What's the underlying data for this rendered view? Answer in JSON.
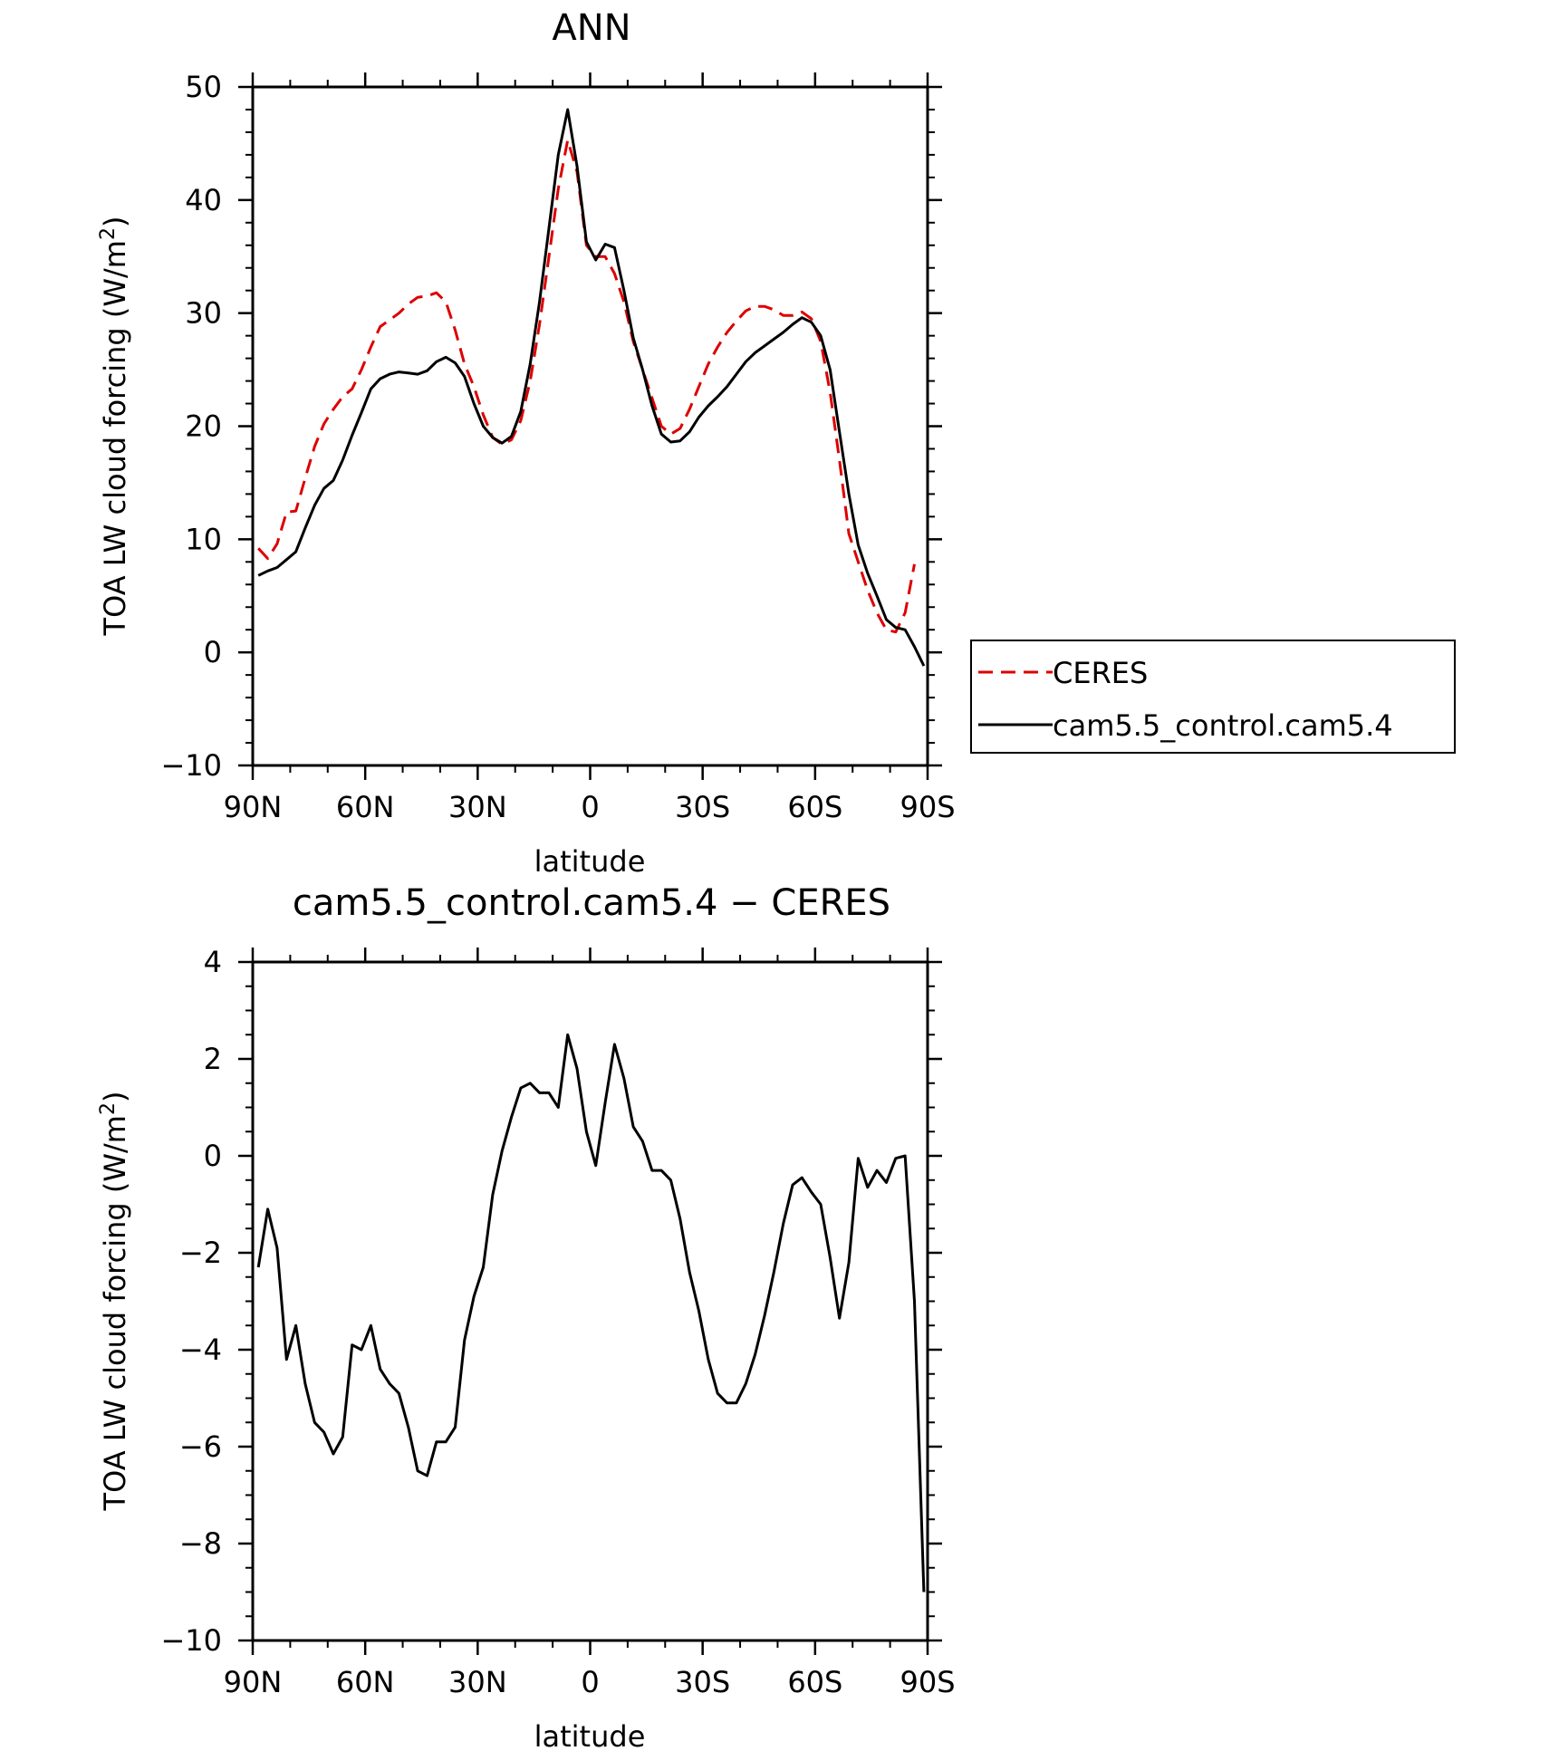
{
  "chart_data": [
    {
      "type": "line",
      "title": "ANN",
      "xlabel": "latitude",
      "ylabel_main": "TOA LW cloud forcing (W/m",
      "ylabel_sup": "2",
      "ylabel_close": ")",
      "xlim": [
        90,
        -90
      ],
      "ylim": [
        -10,
        50
      ],
      "x_ticks": [
        90,
        60,
        30,
        0,
        -30,
        -60,
        -90
      ],
      "x_tick_labels": [
        "90N",
        "60N",
        "30N",
        "0",
        "30S",
        "60S",
        "90S"
      ],
      "y_ticks": [
        -10,
        0,
        10,
        20,
        30,
        40,
        50
      ],
      "y_tick_labels": [
        "−10",
        "0",
        "10",
        "20",
        "30",
        "40",
        "50"
      ],
      "legend_position": "right",
      "series": [
        {
          "name": "CERES",
          "color": "#dd0000",
          "dash": "dashed",
          "points": [
            [
              88.5,
              9.2
            ],
            [
              86,
              8.3
            ],
            [
              83.5,
              9.6
            ],
            [
              81,
              12.4
            ],
            [
              78.5,
              12.5
            ],
            [
              76,
              15.4
            ],
            [
              73.5,
              18.2
            ],
            [
              71,
              20.2
            ],
            [
              68.5,
              21.5
            ],
            [
              66,
              22.6
            ],
            [
              63.5,
              23.3
            ],
            [
              61,
              25.0
            ],
            [
              58.5,
              27.0
            ],
            [
              56,
              28.8
            ],
            [
              53.5,
              29.4
            ],
            [
              51,
              30.0
            ],
            [
              48.5,
              30.8
            ],
            [
              46,
              31.4
            ],
            [
              43.5,
              31.5
            ],
            [
              41,
              31.8
            ],
            [
              38.5,
              31.0
            ],
            [
              36,
              28.5
            ],
            [
              33.5,
              25.5
            ],
            [
              31,
              23.5
            ],
            [
              28.5,
              21.0
            ],
            [
              26,
              19.0
            ],
            [
              23.5,
              18.4
            ],
            [
              21,
              18.8
            ],
            [
              18.5,
              20.5
            ],
            [
              16,
              24.0
            ],
            [
              13.5,
              29.0
            ],
            [
              11,
              35.0
            ],
            [
              8.5,
              41.0
            ],
            [
              6,
              45.3
            ],
            [
              3.5,
              42.5
            ],
            [
              1,
              36.0
            ],
            [
              -1.5,
              35.0
            ],
            [
              -4,
              35.0
            ],
            [
              -6.5,
              33.5
            ],
            [
              -9,
              31.0
            ],
            [
              -11.5,
              27.5
            ],
            [
              -14,
              25.0
            ],
            [
              -16.5,
              22.5
            ],
            [
              -19,
              20.0
            ],
            [
              -21.5,
              19.3
            ],
            [
              -24,
              19.8
            ],
            [
              -26.5,
              21.5
            ],
            [
              -29,
              23.5
            ],
            [
              -31.5,
              25.5
            ],
            [
              -34,
              27.0
            ],
            [
              -36.5,
              28.3
            ],
            [
              -39,
              29.3
            ],
            [
              -41.5,
              30.2
            ],
            [
              -44,
              30.6
            ],
            [
              -46.5,
              30.6
            ],
            [
              -49,
              30.3
            ],
            [
              -51.5,
              29.8
            ],
            [
              -54,
              29.8
            ],
            [
              -56.5,
              30.1
            ],
            [
              -59,
              29.5
            ],
            [
              -61.5,
              27.5
            ],
            [
              -64,
              23.0
            ],
            [
              -66.5,
              17.0
            ],
            [
              -69,
              10.5
            ],
            [
              -71.5,
              8.0
            ],
            [
              -74,
              5.5
            ],
            [
              -76.5,
              3.5
            ],
            [
              -79,
              2.0
            ],
            [
              -81.5,
              1.8
            ],
            [
              -84,
              3.5
            ],
            [
              -86.5,
              7.8
            ]
          ]
        },
        {
          "name": "cam5.5_control.cam5.4",
          "color": "#000000",
          "dash": "solid",
          "points": [
            [
              88.5,
              6.8
            ],
            [
              86,
              7.2
            ],
            [
              83.5,
              7.5
            ],
            [
              81,
              8.2
            ],
            [
              78.5,
              8.9
            ],
            [
              76,
              11.0
            ],
            [
              73.5,
              13.0
            ],
            [
              71,
              14.5
            ],
            [
              68.5,
              15.2
            ],
            [
              66,
              17.0
            ],
            [
              63.5,
              19.2
            ],
            [
              61,
              21.2
            ],
            [
              58.5,
              23.3
            ],
            [
              56,
              24.2
            ],
            [
              53.5,
              24.6
            ],
            [
              51,
              24.8
            ],
            [
              48.5,
              24.7
            ],
            [
              46,
              24.6
            ],
            [
              43.5,
              24.9
            ],
            [
              41,
              25.7
            ],
            [
              38.5,
              26.1
            ],
            [
              36,
              25.6
            ],
            [
              33.5,
              24.4
            ],
            [
              31,
              22.0
            ],
            [
              28.5,
              20.0
            ],
            [
              26,
              19.0
            ],
            [
              23.5,
              18.5
            ],
            [
              21,
              19.1
            ],
            [
              18.5,
              21.3
            ],
            [
              16,
              25.5
            ],
            [
              13.5,
              31.0
            ],
            [
              11,
              37.5
            ],
            [
              8.5,
              44.0
            ],
            [
              6,
              48.0
            ],
            [
              3.5,
              43.0
            ],
            [
              1,
              36.3
            ],
            [
              -1.5,
              34.7
            ],
            [
              -4,
              36.1
            ],
            [
              -6.5,
              35.8
            ],
            [
              -9,
              32.0
            ],
            [
              -11.5,
              27.8
            ],
            [
              -14,
              25.0
            ],
            [
              -16.5,
              21.8
            ],
            [
              -19,
              19.3
            ],
            [
              -21.5,
              18.6
            ],
            [
              -24,
              18.7
            ],
            [
              -26.5,
              19.5
            ],
            [
              -29,
              20.8
            ],
            [
              -31.5,
              21.8
            ],
            [
              -34,
              22.6
            ],
            [
              -36.5,
              23.5
            ],
            [
              -39,
              24.6
            ],
            [
              -41.5,
              25.7
            ],
            [
              -44,
              26.5
            ],
            [
              -46.5,
              27.1
            ],
            [
              -49,
              27.7
            ],
            [
              -51.5,
              28.3
            ],
            [
              -54,
              29.0
            ],
            [
              -56.5,
              29.6
            ],
            [
              -59,
              29.2
            ],
            [
              -61.5,
              28.0
            ],
            [
              -64,
              25.0
            ],
            [
              -66.5,
              19.5
            ],
            [
              -69,
              14.0
            ],
            [
              -71.5,
              9.5
            ],
            [
              -74,
              7.0
            ],
            [
              -76.5,
              5.0
            ],
            [
              -79,
              2.9
            ],
            [
              -81.5,
              2.2
            ],
            [
              -84,
              2.0
            ],
            [
              -86.5,
              0.5
            ],
            [
              -89,
              -1.2
            ]
          ]
        }
      ]
    },
    {
      "type": "line",
      "title": "cam5.5_control.cam5.4 − CERES",
      "xlabel": "latitude",
      "ylabel_main": "TOA LW cloud forcing (W/m",
      "ylabel_sup": "2",
      "ylabel_close": ")",
      "xlim": [
        90,
        -90
      ],
      "ylim": [
        -10,
        4
      ],
      "x_ticks": [
        90,
        60,
        30,
        0,
        -30,
        -60,
        -90
      ],
      "x_tick_labels": [
        "90N",
        "60N",
        "30N",
        "0",
        "30S",
        "60S",
        "90S"
      ],
      "y_ticks": [
        -10,
        -8,
        -6,
        -4,
        -2,
        0,
        2,
        4
      ],
      "y_tick_labels": [
        "−10",
        "−8",
        "−6",
        "−4",
        "−2",
        "0",
        "2",
        "4"
      ],
      "series": [
        {
          "color": "#000000",
          "dash": "solid",
          "points": [
            [
              88.5,
              -2.3
            ],
            [
              86,
              -1.1
            ],
            [
              83.5,
              -1.9
            ],
            [
              81,
              -4.2
            ],
            [
              78.5,
              -3.5
            ],
            [
              76,
              -4.7
            ],
            [
              73.5,
              -5.5
            ],
            [
              71,
              -5.7
            ],
            [
              68.5,
              -6.15
            ],
            [
              66,
              -5.8
            ],
            [
              63.5,
              -3.9
            ],
            [
              61,
              -4.0
            ],
            [
              58.5,
              -3.5
            ],
            [
              56,
              -4.4
            ],
            [
              53.5,
              -4.7
            ],
            [
              51,
              -4.9
            ],
            [
              48.5,
              -5.6
            ],
            [
              46,
              -6.5
            ],
            [
              43.5,
              -6.6
            ],
            [
              41,
              -5.9
            ],
            [
              38.5,
              -5.9
            ],
            [
              36,
              -5.6
            ],
            [
              33.5,
              -3.8
            ],
            [
              31,
              -2.9
            ],
            [
              28.5,
              -2.3
            ],
            [
              26,
              -0.8
            ],
            [
              23.5,
              0.1
            ],
            [
              21,
              0.8
            ],
            [
              18.5,
              1.4
            ],
            [
              16,
              1.5
            ],
            [
              13.5,
              1.3
            ],
            [
              11,
              1.3
            ],
            [
              8.5,
              1.0
            ],
            [
              6,
              2.5
            ],
            [
              3.5,
              1.8
            ],
            [
              1,
              0.5
            ],
            [
              -1.5,
              -0.2
            ],
            [
              -4,
              1.1
            ],
            [
              -6.5,
              2.3
            ],
            [
              -9,
              1.6
            ],
            [
              -11.5,
              0.6
            ],
            [
              -14,
              0.3
            ],
            [
              -16.5,
              -0.3
            ],
            [
              -19,
              -0.3
            ],
            [
              -21.5,
              -0.5
            ],
            [
              -24,
              -1.3
            ],
            [
              -26.5,
              -2.4
            ],
            [
              -29,
              -3.2
            ],
            [
              -31.5,
              -4.2
            ],
            [
              -34,
              -4.9
            ],
            [
              -36.5,
              -5.1
            ],
            [
              -39,
              -5.1
            ],
            [
              -41.5,
              -4.7
            ],
            [
              -44,
              -4.1
            ],
            [
              -46.5,
              -3.3
            ],
            [
              -49,
              -2.4
            ],
            [
              -51.5,
              -1.4
            ],
            [
              -54,
              -0.6
            ],
            [
              -56.5,
              -0.45
            ],
            [
              -59,
              -0.75
            ],
            [
              -61.5,
              -1.0
            ],
            [
              -64,
              -2.1
            ],
            [
              -66.5,
              -3.35
            ],
            [
              -69,
              -2.2
            ],
            [
              -71.5,
              -0.05
            ],
            [
              -74,
              -0.65
            ],
            [
              -76.5,
              -0.3
            ],
            [
              -79,
              -0.55
            ],
            [
              -81.5,
              -0.05
            ],
            [
              -84,
              0.0
            ],
            [
              -86.5,
              -3.0
            ],
            [
              -89,
              -9.0
            ]
          ]
        }
      ]
    }
  ]
}
